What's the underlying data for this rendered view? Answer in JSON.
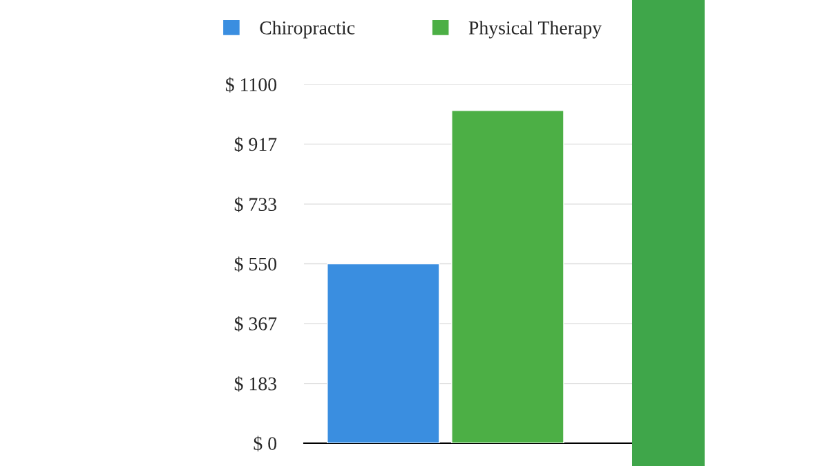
{
  "chart_data": {
    "type": "bar",
    "categories": [
      null
    ],
    "series": [
      {
        "name": "Chiropractic",
        "color": "#3a8ee0",
        "values": [
          550
        ]
      },
      {
        "name": "Physical Therapy",
        "color": "#4caf45",
        "values": [
          1020
        ]
      }
    ],
    "ylim": [
      0,
      1100
    ],
    "yticks": [
      {
        "value": 0,
        "label": "$ 0"
      },
      {
        "value": 183,
        "label": "$ 183"
      },
      {
        "value": 367,
        "label": "$ 367"
      },
      {
        "value": 550,
        "label": "$ 550"
      },
      {
        "value": 733,
        "label": "$ 733"
      },
      {
        "value": 917,
        "label": "$ 917"
      },
      {
        "value": 1100,
        "label": "$ 1100"
      }
    ],
    "grid": "y",
    "legend": "top"
  }
}
